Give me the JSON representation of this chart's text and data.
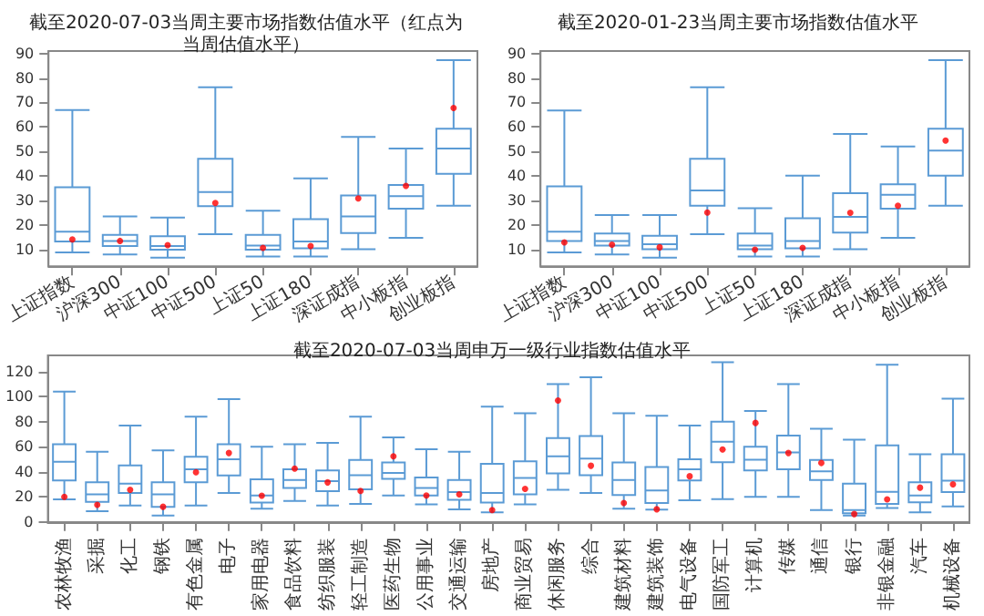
{
  "chart_data": [
    {
      "type": "box",
      "title": "截至2020-07-03当周主要市场指数估值水平（红点为当周估值水平）",
      "categories": [
        "上证指数",
        "沪深300",
        "中证100",
        "中证500",
        "上证50",
        "上证180",
        "深证成指",
        "中小板指",
        "创业板指"
      ],
      "ylim": [
        3,
        91
      ],
      "yticks": [
        10,
        20,
        30,
        40,
        50,
        60,
        70,
        80,
        90
      ],
      "marker": "circle",
      "series": [
        {
          "type": "box",
          "color": "#5b9bd5",
          "boxes": [
            {
              "low": 8.7,
              "q1": 13.2,
              "median": 17.2,
              "q3": 35.3,
              "high": 66.9
            },
            {
              "low": 7.9,
              "q1": 11.3,
              "median": 13.4,
              "q3": 15.9,
              "high": 23.4
            },
            {
              "low": 6.6,
              "q1": 9.8,
              "median": 11.3,
              "q3": 15.3,
              "high": 23
            },
            {
              "low": 16.2,
              "q1": 27.6,
              "median": 33.4,
              "q3": 47,
              "high": 76.2
            },
            {
              "low": 7,
              "q1": 9.8,
              "median": 11.5,
              "q3": 15.9,
              "high": 25.7
            },
            {
              "low": 7,
              "q1": 10.4,
              "median": 13.2,
              "q3": 22.3,
              "high": 39
            },
            {
              "low": 10,
              "q1": 16.6,
              "median": 23.4,
              "q3": 32,
              "high": 55.9
            },
            {
              "low": 14.7,
              "q1": 26.6,
              "median": 31.7,
              "q3": 36.3,
              "high": 51.2
            },
            {
              "low": 27.8,
              "q1": 40.8,
              "median": 51.2,
              "q3": 59.3,
              "high": 87.3
            }
          ]
        },
        {
          "type": "scatter",
          "color": "#ff0000",
          "x": [
            "上证指数",
            "沪深300",
            "中证100",
            "中证500",
            "上证50",
            "上证180",
            "深证成指",
            "中小板指",
            "创业板指"
          ],
          "values": [
            14,
            13.4,
            11.7,
            28.9,
            10.6,
            11.3,
            30.8,
            35.9,
            67.7
          ]
        }
      ]
    },
    {
      "type": "box",
      "title": "截至2020-01-23当周主要市场指数估值水平",
      "categories": [
        "上证指数",
        "沪深300",
        "中证100",
        "中证500",
        "上证50",
        "上证180",
        "深证成指",
        "中小板指",
        "创业板指"
      ],
      "ylim": [
        3,
        91
      ],
      "yticks": [
        10,
        20,
        30,
        40,
        50,
        60,
        70,
        80,
        90
      ],
      "marker": "circle",
      "series": [
        {
          "type": "box",
          "color": "#5b9bd5",
          "boxes": [
            {
              "low": 8.7,
              "q1": 13.4,
              "median": 17.2,
              "q3": 35.7,
              "high": 66.7
            },
            {
              "low": 7.9,
              "q1": 11.5,
              "median": 13.4,
              "q3": 16.4,
              "high": 24
            },
            {
              "low": 6.6,
              "q1": 10,
              "median": 12.1,
              "q3": 15.5,
              "high": 24
            },
            {
              "low": 16.2,
              "q1": 27.8,
              "median": 34,
              "q3": 47,
              "high": 76.2
            },
            {
              "low": 7,
              "q1": 10,
              "median": 11.5,
              "q3": 16.4,
              "high": 26.8
            },
            {
              "low": 7,
              "q1": 10.4,
              "median": 13.4,
              "q3": 22.7,
              "high": 40.1
            },
            {
              "low": 10,
              "q1": 16.8,
              "median": 23.2,
              "q3": 32.9,
              "high": 57.1
            },
            {
              "low": 14.7,
              "q1": 26.6,
              "median": 32.3,
              "q3": 36.5,
              "high": 52
            },
            {
              "low": 27.8,
              "q1": 40.1,
              "median": 50.3,
              "q3": 59.3,
              "high": 87.3
            }
          ]
        },
        {
          "type": "scatter",
          "color": "#ff0000",
          "x": [
            "上证指数",
            "沪深300",
            "中证100",
            "中证500",
            "上证50",
            "上证180",
            "深证成指",
            "中小板指",
            "创业板指"
          ],
          "values": [
            12.8,
            11.9,
            10.8,
            25,
            9.8,
            10.6,
            24.9,
            27.8,
            54.4
          ]
        }
      ]
    },
    {
      "type": "box",
      "title": "截至2020-07-03当周申万一级行业指数估值水平",
      "categories": [
        "农林牧渔",
        "采掘",
        "化工",
        "钢铁",
        "有色金属",
        "电子",
        "家用电器",
        "食品饮料",
        "纺织服装",
        "轻工制造",
        "医药生物",
        "公用事业",
        "交通运输",
        "房地产",
        "商业贸易",
        "休闲服务",
        "综合",
        "建筑材料",
        "建筑装饰",
        "电气设备",
        "国防军工",
        "计算机",
        "传媒",
        "通信",
        "银行",
        "非银金融",
        "汽车",
        "机械设备"
      ],
      "ylim": [
        -1,
        133
      ],
      "yticks": [
        0,
        20,
        40,
        60,
        80,
        100,
        120
      ],
      "marker": "circle",
      "series": [
        {
          "type": "box",
          "color": "#5b9bd5",
          "boxes": [
            {
              "low": 18,
              "q1": 33,
              "median": 48,
              "q3": 62,
              "high": 104
            },
            {
              "low": 8.5,
              "q1": 16,
              "median": 22,
              "q3": 31.5,
              "high": 56
            },
            {
              "low": 13,
              "q1": 23,
              "median": 30.5,
              "q3": 45,
              "high": 77
            },
            {
              "low": 5,
              "q1": 12,
              "median": 22,
              "q3": 31.5,
              "high": 57
            },
            {
              "low": 13,
              "q1": 31.5,
              "median": 42,
              "q3": 52,
              "high": 84
            },
            {
              "low": 23,
              "q1": 37,
              "median": 50,
              "q3": 62,
              "high": 98
            },
            {
              "low": 10.4,
              "q1": 15.3,
              "median": 21,
              "q3": 34,
              "high": 60
            },
            {
              "low": 16.6,
              "q1": 27,
              "median": 33.4,
              "q3": 42,
              "high": 62
            },
            {
              "low": 13,
              "q1": 24.4,
              "median": 32.5,
              "q3": 41,
              "high": 63
            },
            {
              "low": 14.3,
              "q1": 26,
              "median": 37.3,
              "q3": 49.4,
              "high": 84
            },
            {
              "low": 21,
              "q1": 34.4,
              "median": 39,
              "q3": 47.4,
              "high": 67.5
            },
            {
              "low": 14,
              "q1": 21,
              "median": 27,
              "q3": 35.4,
              "high": 58
            },
            {
              "low": 10,
              "q1": 17.5,
              "median": 23.7,
              "q3": 33.4,
              "high": 56
            },
            {
              "low": 7.5,
              "q1": 15.3,
              "median": 23,
              "q3": 46.4,
              "high": 92
            },
            {
              "low": 14,
              "q1": 22,
              "median": 35,
              "q3": 48.4,
              "high": 86.7
            },
            {
              "low": 25.6,
              "q1": 38.6,
              "median": 52.3,
              "q3": 67,
              "high": 110
            },
            {
              "low": 23,
              "q1": 37.3,
              "median": 50.6,
              "q3": 68.5,
              "high": 115.6
            },
            {
              "low": 10.4,
              "q1": 21.4,
              "median": 33.4,
              "q3": 47.4,
              "high": 86.7
            },
            {
              "low": 9.7,
              "q1": 15,
              "median": 25,
              "q3": 43.8,
              "high": 84.7
            },
            {
              "low": 17.2,
              "q1": 33,
              "median": 41.9,
              "q3": 50,
              "high": 77
            },
            {
              "low": 18.2,
              "q1": 47.7,
              "median": 64,
              "q3": 80,
              "high": 127.6
            },
            {
              "low": 20,
              "q1": 41,
              "median": 49.7,
              "q3": 60,
              "high": 88.6
            },
            {
              "low": 20,
              "q1": 42,
              "median": 55.5,
              "q3": 69,
              "high": 110
            },
            {
              "low": 9.4,
              "q1": 33.4,
              "median": 40.3,
              "q3": 49.4,
              "high": 74.4
            },
            {
              "low": 5,
              "q1": 6.8,
              "median": 9.4,
              "q3": 30.5,
              "high": 65.6
            },
            {
              "low": 11,
              "q1": 14.3,
              "median": 24,
              "q3": 61,
              "high": 125.6
            },
            {
              "low": 7.5,
              "q1": 15.6,
              "median": 21,
              "q3": 31.5,
              "high": 54
            },
            {
              "low": 12.3,
              "q1": 23.7,
              "median": 32.8,
              "q3": 54,
              "high": 98.4
            }
          ]
        },
        {
          "type": "scatter",
          "color": "#ff0000",
          "x": [
            "农林牧渔",
            "采掘",
            "化工",
            "钢铁",
            "有色金属",
            "电子",
            "家用电器",
            "食品饮料",
            "纺织服装",
            "轻工制造",
            "医药生物",
            "公用事业",
            "交通运输",
            "房地产",
            "商业贸易",
            "休闲服务",
            "综合",
            "建筑材料",
            "建筑装饰",
            "电气设备",
            "国防军工",
            "计算机",
            "传媒",
            "通信",
            "银行",
            "非银金融",
            "汽车",
            "机械设备"
          ],
          "values": [
            20,
            13.6,
            25.6,
            12,
            39.6,
            55,
            20.8,
            42.5,
            31.5,
            24.7,
            52.3,
            21,
            22,
            9.4,
            26.3,
            97,
            44.8,
            15,
            10,
            36.4,
            57.8,
            79,
            55,
            47,
            6.2,
            17.9,
            27.3,
            30
          ]
        }
      ]
    }
  ]
}
